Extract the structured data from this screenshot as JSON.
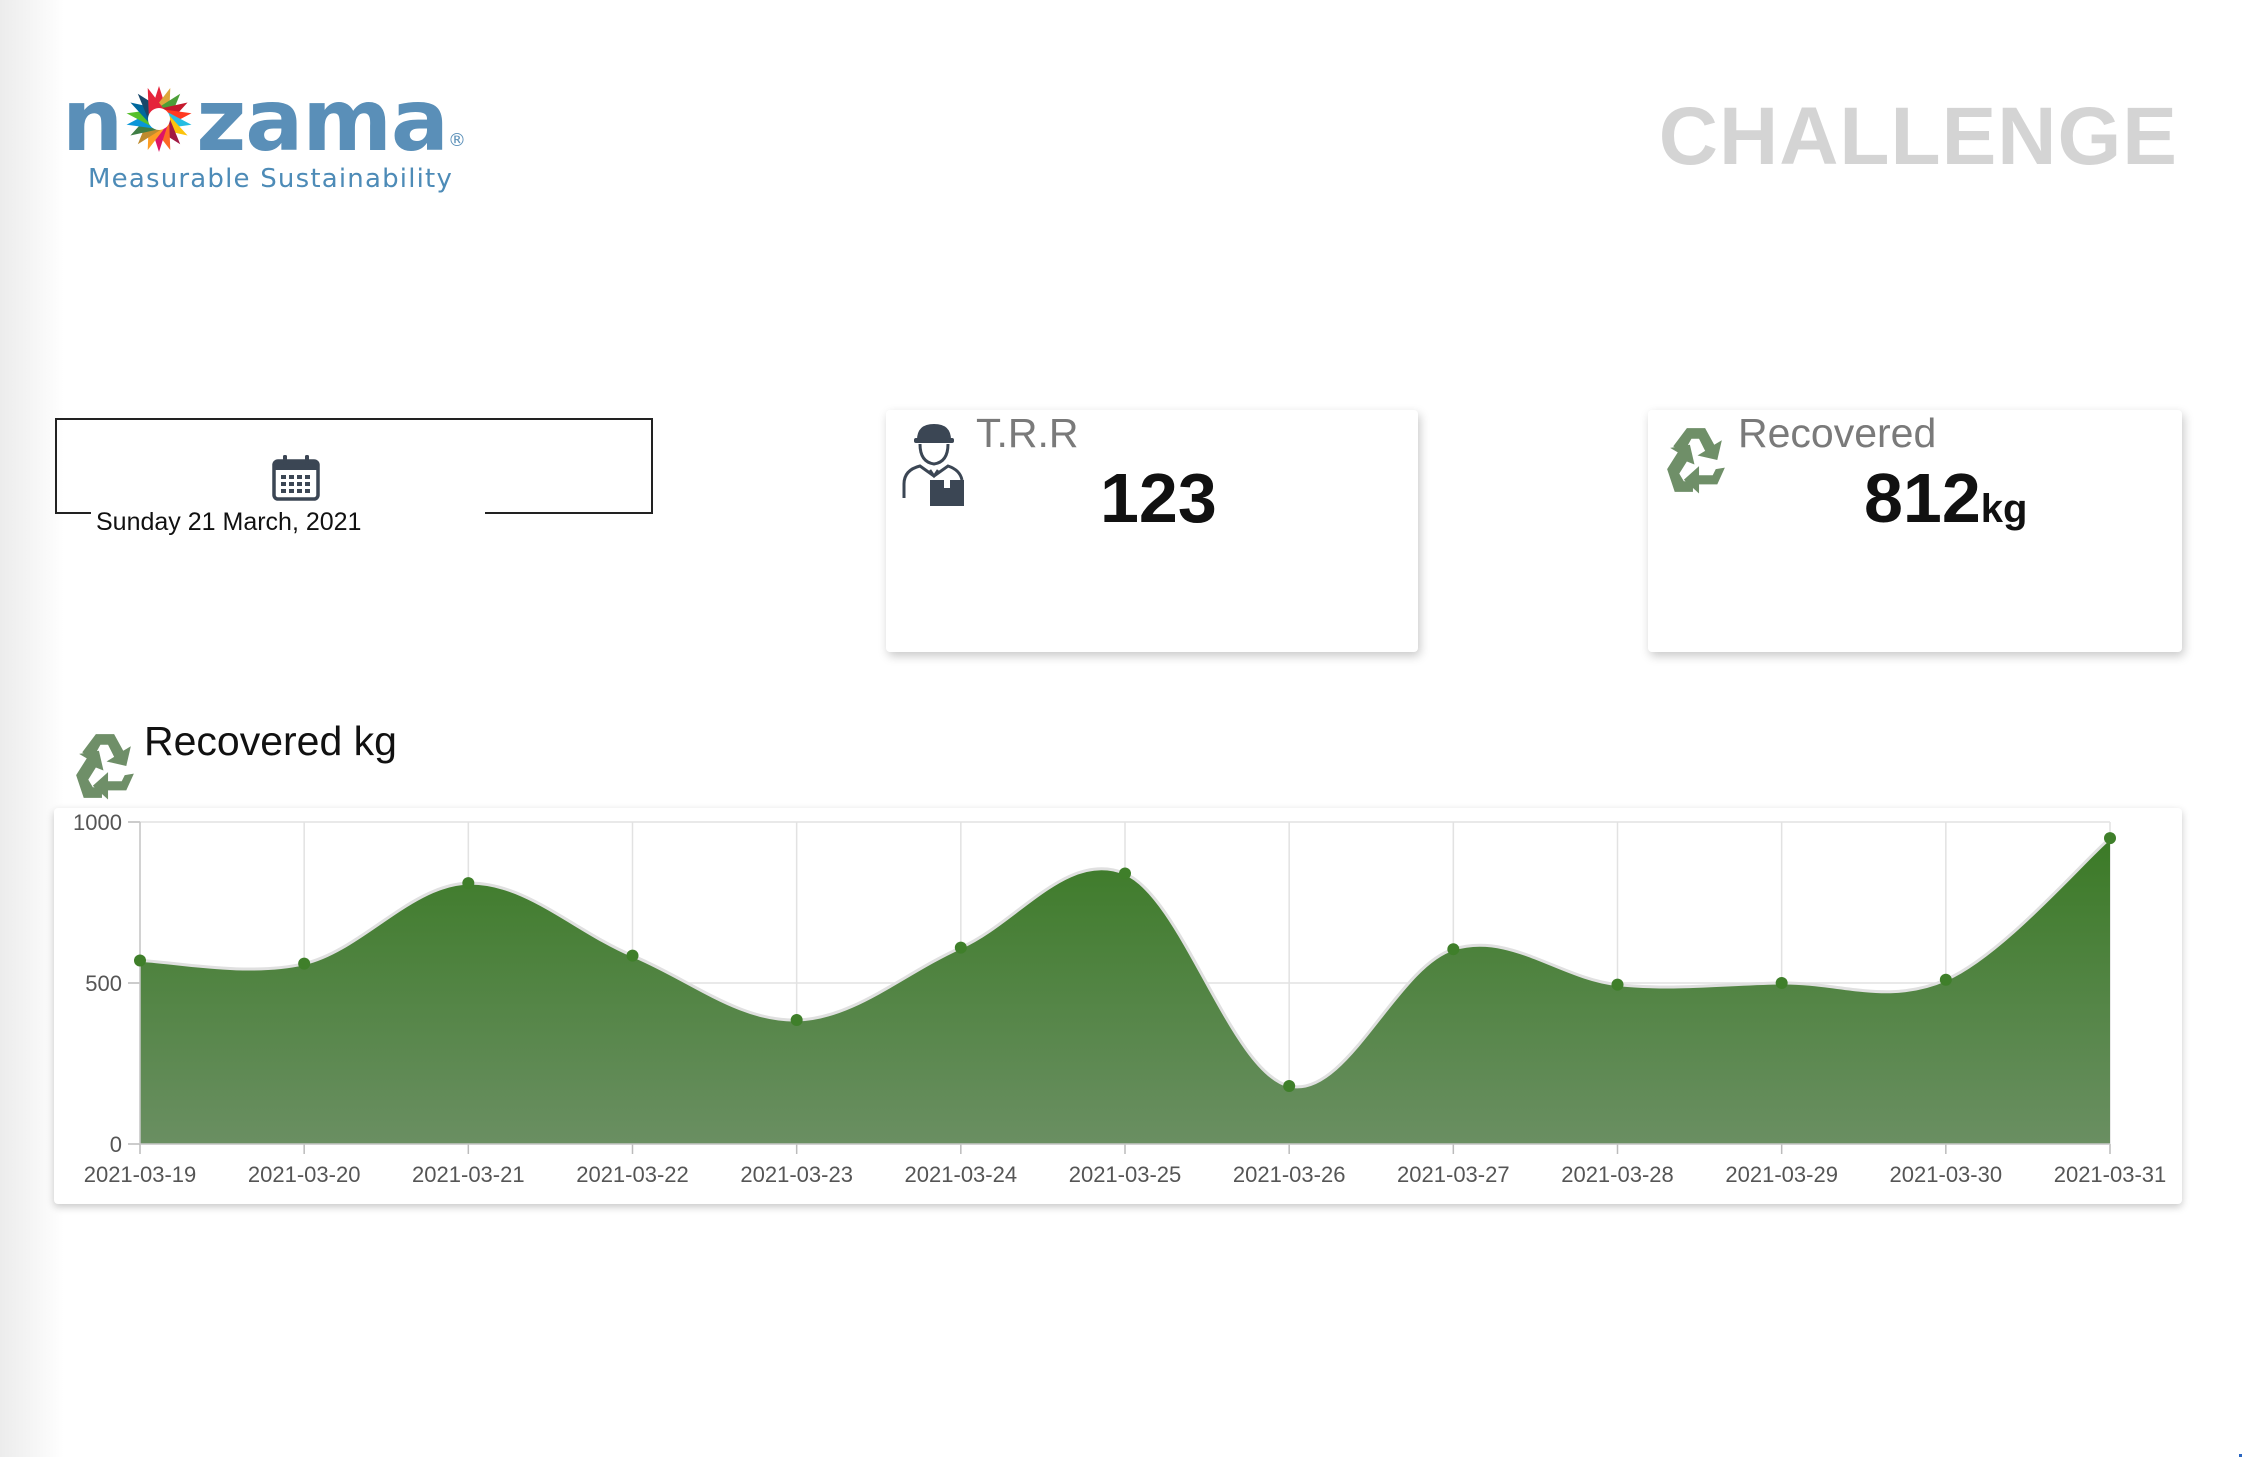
{
  "brand": {
    "name_left": "n",
    "name_right": "zama",
    "registered": "®",
    "tagline": "Measurable Sustainability",
    "colors": {
      "logo_blue": "#5a8fb8",
      "challenge_gray": "#d4d4d4"
    }
  },
  "header": {
    "title": "CHALLENGE"
  },
  "date_picker": {
    "icon": "calendar-icon",
    "value": "Sunday 21 March, 2021"
  },
  "cards": {
    "trr": {
      "icon": "delivery-worker-icon",
      "label": "T.R.R",
      "value": "123"
    },
    "recovered": {
      "icon": "recycle-icon",
      "label": "Recovered",
      "value": "812",
      "unit": "kg"
    }
  },
  "chart_section": {
    "icon": "recycle-icon",
    "title": "Recovered kg"
  },
  "chart_data": {
    "type": "area",
    "title": "Recovered kg",
    "x": [
      "2021-03-19",
      "2021-03-20",
      "2021-03-21",
      "2021-03-22",
      "2021-03-23",
      "2021-03-24",
      "2021-03-25",
      "2021-03-26",
      "2021-03-27",
      "2021-03-28",
      "2021-03-29",
      "2021-03-30",
      "2021-03-31"
    ],
    "series": [
      {
        "values": [
          570,
          560,
          810,
          585,
          385,
          610,
          840,
          180,
          605,
          495,
          500,
          510,
          950
        ]
      }
    ],
    "ylim": [
      0,
      1000
    ],
    "yticks": [
      0,
      500,
      1000
    ],
    "grid": true,
    "legend": "none",
    "colors": {
      "fill_top": "#3b7a26",
      "fill_bottom": "#6a8f62",
      "line": "#e0e0e0",
      "point": "#3f7f2a"
    }
  }
}
